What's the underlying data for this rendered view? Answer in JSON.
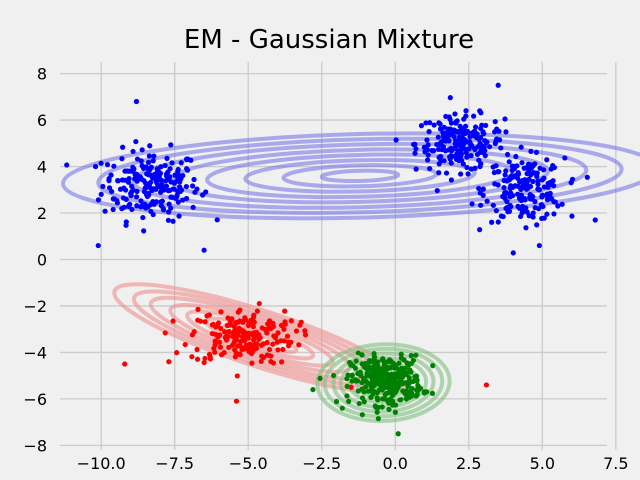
{
  "chart_data": {
    "type": "scatter",
    "title": "EM - Gaussian Mixture",
    "xlabel": "",
    "ylabel": "",
    "xlim": [
      -11.4,
      7.2
    ],
    "ylim": [
      -8.2,
      8.5
    ],
    "xticks": [
      -10.0,
      -7.5,
      -5.0,
      -2.5,
      0.0,
      2.5,
      5.0,
      7.5
    ],
    "xtick_labels": [
      "−10.0",
      "−7.5",
      "−5.0",
      "−2.5",
      "0.0",
      "2.5",
      "5.0",
      "7.5"
    ],
    "yticks": [
      -8,
      -6,
      -4,
      -2,
      0,
      2,
      4,
      6,
      8
    ],
    "ytick_labels": [
      "−8",
      "−6",
      "−4",
      "−2",
      "0",
      "2",
      "4",
      "6",
      "8"
    ],
    "grid": true,
    "style": "fivethirtyeight",
    "clusters": [
      {
        "color": "#0000ff",
        "subclusters": [
          {
            "center": [
              -8.3,
              3.2
            ],
            "spread": [
              1.1,
              1.0
            ],
            "count": 210
          },
          {
            "center": [
              2.2,
              5.0
            ],
            "spread": [
              1.0,
              0.8
            ],
            "count": 200
          },
          {
            "center": [
              4.4,
              3.0
            ],
            "spread": [
              0.9,
              0.9
            ],
            "count": 190
          }
        ],
        "outliers": [
          [
            -8.8,
            6.8
          ],
          [
            -10.1,
            0.6
          ],
          [
            -6.5,
            0.4
          ],
          [
            3.5,
            7.5
          ],
          [
            4.9,
            0.6
          ],
          [
            6.8,
            1.7
          ]
        ],
        "contour": {
          "center": [
            -1.2,
            3.6
          ],
          "rx": [
            1.3,
            2.6,
            3.9,
            5.2,
            6.4,
            7.7,
            8.9,
            10.1
          ],
          "ry": [
            0.22,
            0.45,
            0.67,
            0.9,
            1.12,
            1.35,
            1.57,
            1.8
          ],
          "angle_deg": 1.5,
          "color": "#6e6ee6",
          "opacity": 0.55
        }
      },
      {
        "color": "#ff0000",
        "subclusters": [
          {
            "center": [
              -5.2,
              -3.3
            ],
            "spread": [
              1.2,
              0.8
            ],
            "count": 200
          }
        ],
        "outliers": [
          [
            -9.2,
            -4.5
          ],
          [
            -7.7,
            -4.4
          ],
          [
            -5.4,
            -6.1
          ],
          [
            -1.5,
            -5.5
          ],
          [
            3.1,
            -5.4
          ]
        ],
        "contour": {
          "center": [
            -4.6,
            -3.4
          ],
          "rx": [
            0.6,
            1.3,
            1.9,
            2.6,
            3.2,
            3.9,
            4.5,
            5.2
          ],
          "ry": [
            0.15,
            0.3,
            0.45,
            0.6,
            0.75,
            0.9,
            1.05,
            1.2
          ],
          "angle_deg": -18,
          "color": "#f09090",
          "opacity": 0.6
        }
      },
      {
        "color": "#008000",
        "subclusters": [
          {
            "center": [
              -0.3,
              -5.2
            ],
            "spread": [
              0.8,
              0.7
            ],
            "count": 300
          }
        ],
        "outliers": [
          [
            -1.8,
            -6.4
          ],
          [
            0.1,
            -7.5
          ],
          [
            -2.8,
            -5.6
          ]
        ],
        "contour": {
          "center": [
            -0.4,
            -5.3
          ],
          "rx": [
            0.35,
            0.6,
            0.9,
            1.15,
            1.45,
            1.7,
            2.0,
            2.25
          ],
          "ry": [
            0.25,
            0.45,
            0.65,
            0.85,
            1.05,
            1.25,
            1.45,
            1.65
          ],
          "angle_deg": 2,
          "color": "#80c080",
          "opacity": 0.6
        }
      }
    ]
  }
}
